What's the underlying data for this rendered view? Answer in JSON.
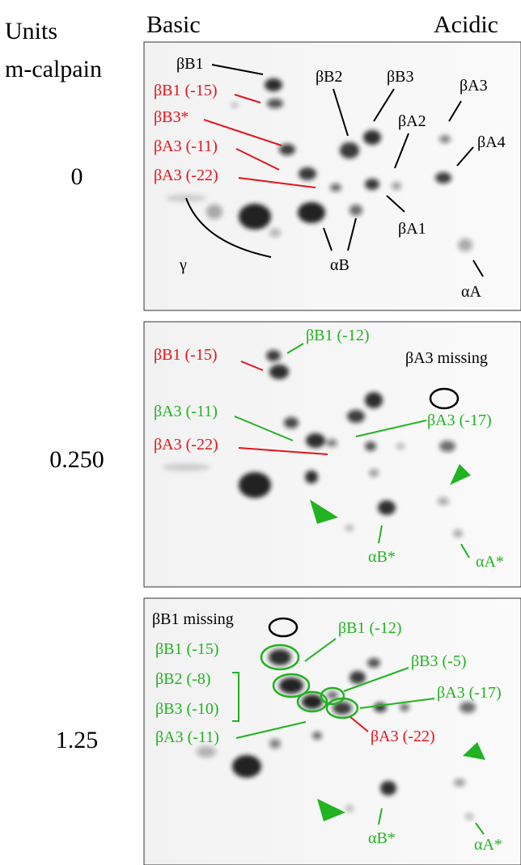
{
  "header": {
    "units": "Units",
    "enzyme": "m-calpain",
    "basic": "Basic",
    "acidic": "Acidic"
  },
  "panels": [
    {
      "amount": "0",
      "labels": [
        "βB1",
        "βB1 (-15)",
        "βB3*",
        "βA3 (-11)",
        "βA3 (-22)",
        "βB2",
        "βB3",
        "βA3",
        "βA2",
        "βA4",
        "βA1",
        "αB",
        "γ",
        "αA"
      ]
    },
    {
      "amount": "0.250",
      "labels": [
        "βB1 (-15)",
        "βB1 (-12)",
        "βA3 missing",
        "βA3 (-11)",
        "βA3 (-17)",
        "βA3 (-22)",
        "αB*",
        "αA*"
      ]
    },
    {
      "amount": "1.25",
      "labels": [
        "βB1 missing",
        "βB1 (-15)",
        "βB1 (-12)",
        "βB3 (-5)",
        "βB2 (-8)",
        "βB3 (-10)",
        "βA3 (-17)",
        "βA3 (-11)",
        "βA3 (-22)",
        "αB*",
        "αA*"
      ]
    }
  ]
}
